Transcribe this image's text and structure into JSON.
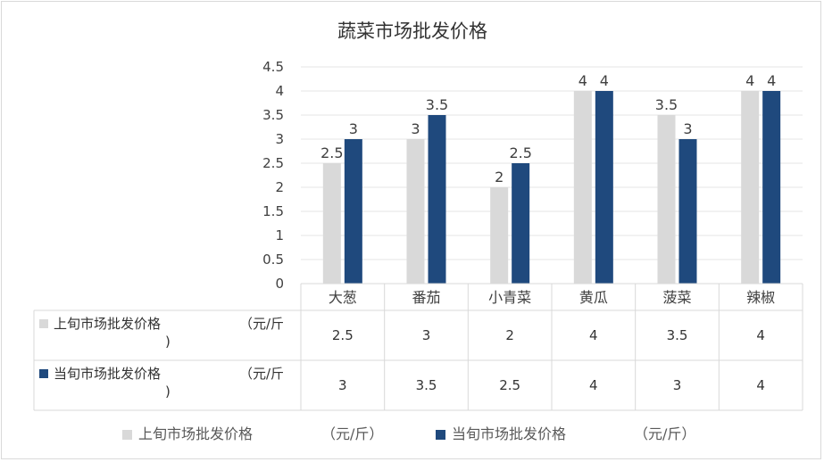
{
  "chart_data": {
    "type": "bar",
    "title": "蔬菜市场批发价格",
    "categories": [
      "大葱",
      "番茄",
      "小青菜",
      "黄瓜",
      "菠菜",
      "辣椒"
    ],
    "series": [
      {
        "name": "上旬市场批发价格",
        "name_line2": ")",
        "unit": "（元/斤",
        "legend_unit": "（元/斤）",
        "color": "#d9d9d9",
        "values": [
          2.5,
          3,
          2,
          4,
          3.5,
          4
        ],
        "labels": [
          "2.5",
          "3",
          "2",
          "4",
          "3.5",
          "4"
        ]
      },
      {
        "name": "当旬市场批发价格",
        "name_line2": ")",
        "unit": "（元/斤",
        "legend_unit": "（元/斤）",
        "color": "#1f497d",
        "values": [
          3,
          3.5,
          2.5,
          4,
          3,
          4
        ],
        "labels": [
          "3",
          "3.5",
          "2.5",
          "4",
          "3",
          "4"
        ]
      }
    ],
    "y_ticks": [
      "0",
      "0.5",
      "1",
      "1.5",
      "2",
      "2.5",
      "3",
      "3.5",
      "4",
      "4.5"
    ],
    "ylim": [
      0,
      4.5
    ],
    "grid": true,
    "data_table": true,
    "legend_position": "bottom"
  }
}
